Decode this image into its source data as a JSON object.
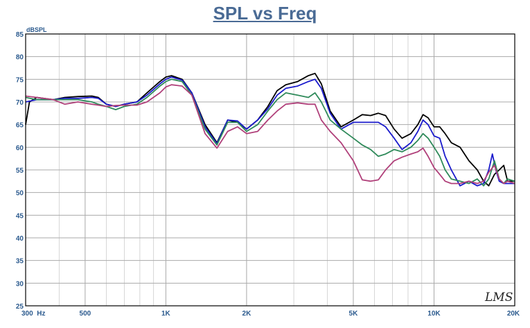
{
  "chart_data": {
    "type": "line",
    "title": "SPL vs Freq",
    "ylabel": "dBSPL",
    "xscale": "log",
    "xlim": [
      300,
      20000
    ],
    "ylim": [
      25,
      85
    ],
    "grid": true,
    "yticks": [
      25,
      30,
      35,
      40,
      45,
      50,
      55,
      60,
      65,
      70,
      75,
      80,
      85
    ],
    "xticks": [
      {
        "value": 300,
        "label": "300  Hz"
      },
      {
        "value": 500,
        "label": "500"
      },
      {
        "value": 1000,
        "label": "1K"
      },
      {
        "value": 2000,
        "label": "2K"
      },
      {
        "value": 5000,
        "label": "5K"
      },
      {
        "value": 10000,
        "label": "10K"
      },
      {
        "value": 20000,
        "label": "20K"
      }
    ],
    "logo": "LMS",
    "series": [
      {
        "color": "#000000",
        "points": [
          [
            300,
            65
          ],
          [
            310,
            70
          ],
          [
            330,
            71
          ],
          [
            380,
            70.5
          ],
          [
            420,
            71
          ],
          [
            470,
            71.2
          ],
          [
            530,
            71.3
          ],
          [
            560,
            71
          ],
          [
            600,
            69.5
          ],
          [
            650,
            69
          ],
          [
            700,
            69.5
          ],
          [
            780,
            70
          ],
          [
            850,
            72
          ],
          [
            950,
            74.5
          ],
          [
            1000,
            75.5
          ],
          [
            1050,
            75.8
          ],
          [
            1150,
            75
          ],
          [
            1250,
            72
          ],
          [
            1400,
            65
          ],
          [
            1550,
            61
          ],
          [
            1700,
            66
          ],
          [
            1850,
            65.5
          ],
          [
            2000,
            64
          ],
          [
            2200,
            66
          ],
          [
            2400,
            69
          ],
          [
            2600,
            72.5
          ],
          [
            2800,
            73.8
          ],
          [
            3100,
            74.5
          ],
          [
            3400,
            75.8
          ],
          [
            3600,
            76.3
          ],
          [
            3800,
            74
          ],
          [
            4100,
            68
          ],
          [
            4500,
            64.5
          ],
          [
            5000,
            66
          ],
          [
            5400,
            67.2
          ],
          [
            5800,
            67
          ],
          [
            6200,
            67.5
          ],
          [
            6600,
            67
          ],
          [
            7100,
            64
          ],
          [
            7600,
            62
          ],
          [
            8200,
            63
          ],
          [
            8700,
            65
          ],
          [
            9100,
            67.2
          ],
          [
            9500,
            66.5
          ],
          [
            10000,
            64.5
          ],
          [
            10500,
            64.5
          ],
          [
            11000,
            63
          ],
          [
            11600,
            61
          ],
          [
            12500,
            60
          ],
          [
            13500,
            57
          ],
          [
            14500,
            55
          ],
          [
            15300,
            52.5
          ],
          [
            16000,
            51.5
          ],
          [
            16800,
            54
          ],
          [
            17500,
            55
          ],
          [
            18200,
            56
          ],
          [
            18800,
            52.5
          ],
          [
            20000,
            52.5
          ]
        ]
      },
      {
        "color": "#1a1acc",
        "points": [
          [
            300,
            70
          ],
          [
            330,
            70.5
          ],
          [
            380,
            70.5
          ],
          [
            420,
            70.8
          ],
          [
            470,
            70.8
          ],
          [
            530,
            71
          ],
          [
            560,
            70.8
          ],
          [
            600,
            69.5
          ],
          [
            650,
            69
          ],
          [
            700,
            69.5
          ],
          [
            780,
            70
          ],
          [
            850,
            71.5
          ],
          [
            950,
            74
          ],
          [
            1000,
            75
          ],
          [
            1050,
            75.5
          ],
          [
            1150,
            74.8
          ],
          [
            1250,
            72
          ],
          [
            1400,
            64.5
          ],
          [
            1550,
            60.8
          ],
          [
            1700,
            66
          ],
          [
            1850,
            65.8
          ],
          [
            2000,
            64
          ],
          [
            2200,
            66
          ],
          [
            2400,
            68.5
          ],
          [
            2600,
            71.5
          ],
          [
            2800,
            73
          ],
          [
            3100,
            73.5
          ],
          [
            3400,
            74.5
          ],
          [
            3600,
            75
          ],
          [
            3800,
            73
          ],
          [
            4100,
            67.5
          ],
          [
            4500,
            64
          ],
          [
            5000,
            65.5
          ],
          [
            5400,
            65.5
          ],
          [
            5800,
            65.5
          ],
          [
            6200,
            65.5
          ],
          [
            6600,
            64.5
          ],
          [
            7100,
            62
          ],
          [
            7600,
            59.5
          ],
          [
            8200,
            61
          ],
          [
            8700,
            63.5
          ],
          [
            9100,
            66
          ],
          [
            9500,
            65
          ],
          [
            10000,
            62.5
          ],
          [
            10500,
            62
          ],
          [
            11000,
            58
          ],
          [
            11600,
            55
          ],
          [
            12500,
            51.5
          ],
          [
            13500,
            52.5
          ],
          [
            14500,
            51.5
          ],
          [
            15300,
            52
          ],
          [
            16000,
            55
          ],
          [
            16500,
            58.5
          ],
          [
            17000,
            55
          ],
          [
            17500,
            52.5
          ],
          [
            18200,
            52
          ],
          [
            18800,
            52
          ],
          [
            20000,
            52
          ]
        ]
      },
      {
        "color": "#2f8a5a",
        "points": [
          [
            300,
            71
          ],
          [
            330,
            70.5
          ],
          [
            380,
            70.5
          ],
          [
            420,
            70.5
          ],
          [
            470,
            70.5
          ],
          [
            530,
            70
          ],
          [
            560,
            69.5
          ],
          [
            600,
            69
          ],
          [
            650,
            68.3
          ],
          [
            700,
            69
          ],
          [
            780,
            69.5
          ],
          [
            850,
            71
          ],
          [
            950,
            73.5
          ],
          [
            1000,
            74.5
          ],
          [
            1050,
            75
          ],
          [
            1150,
            74.5
          ],
          [
            1250,
            71.5
          ],
          [
            1400,
            64
          ],
          [
            1550,
            60.5
          ],
          [
            1700,
            65.5
          ],
          [
            1850,
            65.5
          ],
          [
            2000,
            63.5
          ],
          [
            2200,
            65
          ],
          [
            2400,
            68
          ],
          [
            2600,
            70.5
          ],
          [
            2800,
            72
          ],
          [
            3100,
            71.5
          ],
          [
            3400,
            71
          ],
          [
            3600,
            72
          ],
          [
            3800,
            70
          ],
          [
            4100,
            66
          ],
          [
            4500,
            64
          ],
          [
            5000,
            62
          ],
          [
            5400,
            60.5
          ],
          [
            5800,
            59.5
          ],
          [
            6200,
            58
          ],
          [
            6600,
            58.5
          ],
          [
            7100,
            59.5
          ],
          [
            7600,
            59
          ],
          [
            8200,
            60
          ],
          [
            8700,
            61.5
          ],
          [
            9100,
            63
          ],
          [
            9500,
            62
          ],
          [
            10000,
            60
          ],
          [
            10500,
            58
          ],
          [
            11000,
            55
          ],
          [
            11600,
            53
          ],
          [
            12500,
            52.5
          ],
          [
            13500,
            52
          ],
          [
            14500,
            53
          ],
          [
            15300,
            51.5
          ],
          [
            16000,
            53
          ],
          [
            16800,
            57
          ],
          [
            17500,
            53
          ],
          [
            18200,
            52
          ],
          [
            18800,
            53
          ],
          [
            20000,
            52.5
          ]
        ]
      },
      {
        "color": "#b0407a",
        "points": [
          [
            300,
            71.3
          ],
          [
            330,
            71
          ],
          [
            380,
            70.5
          ],
          [
            420,
            69.5
          ],
          [
            470,
            70
          ],
          [
            530,
            69.5
          ],
          [
            560,
            69.3
          ],
          [
            600,
            69
          ],
          [
            650,
            69.2
          ],
          [
            700,
            69.3
          ],
          [
            780,
            69.3
          ],
          [
            850,
            70
          ],
          [
            950,
            72
          ],
          [
            1000,
            73.3
          ],
          [
            1050,
            73.8
          ],
          [
            1150,
            73.5
          ],
          [
            1250,
            71.5
          ],
          [
            1400,
            63
          ],
          [
            1550,
            59.8
          ],
          [
            1700,
            63.5
          ],
          [
            1850,
            64.5
          ],
          [
            2000,
            63
          ],
          [
            2200,
            63.5
          ],
          [
            2400,
            66
          ],
          [
            2600,
            68
          ],
          [
            2800,
            69.5
          ],
          [
            3100,
            69.8
          ],
          [
            3400,
            69.5
          ],
          [
            3600,
            69.5
          ],
          [
            3800,
            66
          ],
          [
            4100,
            63.5
          ],
          [
            4500,
            61
          ],
          [
            5000,
            57
          ],
          [
            5400,
            52.8
          ],
          [
            5800,
            52.5
          ],
          [
            6200,
            52.8
          ],
          [
            6600,
            55
          ],
          [
            7100,
            57
          ],
          [
            7600,
            57.8
          ],
          [
            8200,
            58.5
          ],
          [
            8700,
            59
          ],
          [
            9100,
            59.8
          ],
          [
            9500,
            58
          ],
          [
            10000,
            55.5
          ],
          [
            10500,
            54
          ],
          [
            11000,
            52.5
          ],
          [
            11600,
            52
          ],
          [
            12500,
            52
          ],
          [
            13500,
            52.5
          ],
          [
            14500,
            52
          ],
          [
            15300,
            52.5
          ],
          [
            16000,
            54.5
          ],
          [
            16800,
            56
          ],
          [
            17500,
            53
          ],
          [
            18200,
            52
          ],
          [
            18800,
            52.5
          ],
          [
            20000,
            52
          ]
        ]
      }
    ]
  }
}
